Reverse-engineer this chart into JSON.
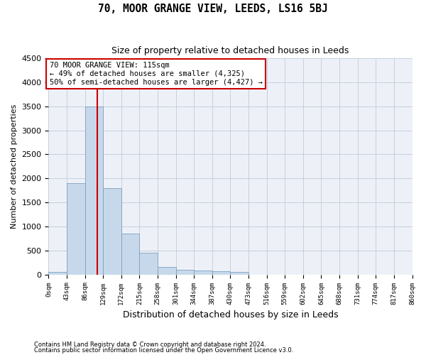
{
  "title": "70, MOOR GRANGE VIEW, LEEDS, LS16 5BJ",
  "subtitle": "Size of property relative to detached houses in Leeds",
  "xlabel": "Distribution of detached houses by size in Leeds",
  "ylabel": "Number of detached properties",
  "bar_color": "#c8d8eb",
  "bar_edge_color": "#7aa0c0",
  "grid_color": "#c5cfe0",
  "vline_color": "#cc0000",
  "annotation_box_edgecolor": "#cc0000",
  "footer_line1": "Contains HM Land Registry data © Crown copyright and database right 2024.",
  "footer_line2": "Contains public sector information licensed under the Open Government Licence v3.0.",
  "annotation_line1": "70 MOOR GRANGE VIEW: 115sqm",
  "annotation_line2": "← 49% of detached houses are smaller (4,325)",
  "annotation_line3": "50% of semi-detached houses are larger (4,427) →",
  "property_size": 115,
  "bin_edges": [
    0,
    43,
    86,
    129,
    172,
    215,
    258,
    301,
    344,
    387,
    430,
    473,
    516,
    559,
    602,
    645,
    688,
    731,
    774,
    817,
    860
  ],
  "bar_heights": [
    50,
    1900,
    3500,
    1800,
    850,
    450,
    160,
    100,
    80,
    70,
    50,
    0,
    0,
    0,
    0,
    0,
    0,
    0,
    0,
    0
  ],
  "ylim": [
    0,
    4500
  ],
  "yticks": [
    0,
    500,
    1000,
    1500,
    2000,
    2500,
    3000,
    3500,
    4000,
    4500
  ],
  "background_color": "#edf1f7",
  "figsize": [
    6.0,
    5.0
  ],
  "dpi": 100
}
